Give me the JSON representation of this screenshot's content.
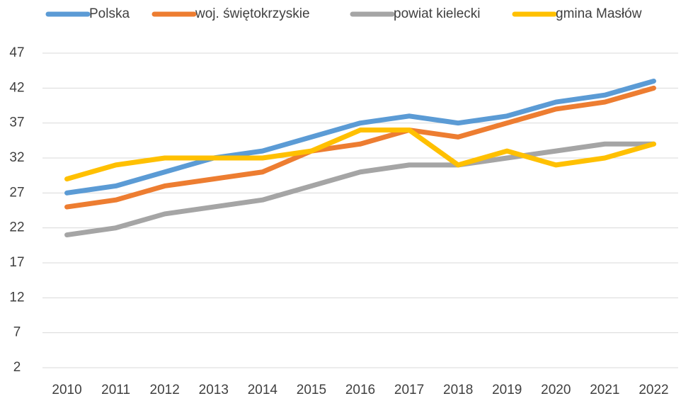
{
  "chart_data": {
    "type": "line",
    "categories": [
      "2010",
      "2011",
      "2012",
      "2013",
      "2014",
      "2015",
      "2016",
      "2017",
      "2018",
      "2019",
      "2020",
      "2021",
      "2022"
    ],
    "series": [
      {
        "name": "Polska",
        "color": "#5b9bd5",
        "values": [
          27,
          28,
          30,
          32,
          33,
          35,
          37,
          38,
          37,
          38,
          40,
          41,
          43
        ]
      },
      {
        "name": "woj. świętokrzyskie",
        "color": "#ed7d31",
        "values": [
          25,
          26,
          28,
          29,
          30,
          33,
          34,
          36,
          35,
          37,
          39,
          40,
          42
        ]
      },
      {
        "name": "powiat kielecki",
        "color": "#a5a5a5",
        "values": [
          21,
          22,
          24,
          25,
          26,
          28,
          30,
          31,
          31,
          32,
          33,
          34,
          34
        ]
      },
      {
        "name": "gmina Masłów",
        "color": "#ffc000",
        "values": [
          29,
          31,
          32,
          32,
          32,
          33,
          36,
          36,
          31,
          33,
          31,
          32,
          34
        ]
      }
    ],
    "ylim": [
      2,
      47
    ],
    "yticks": [
      2,
      7,
      12,
      17,
      22,
      27,
      32,
      37,
      42,
      47
    ],
    "grid": true,
    "legend": "top"
  }
}
